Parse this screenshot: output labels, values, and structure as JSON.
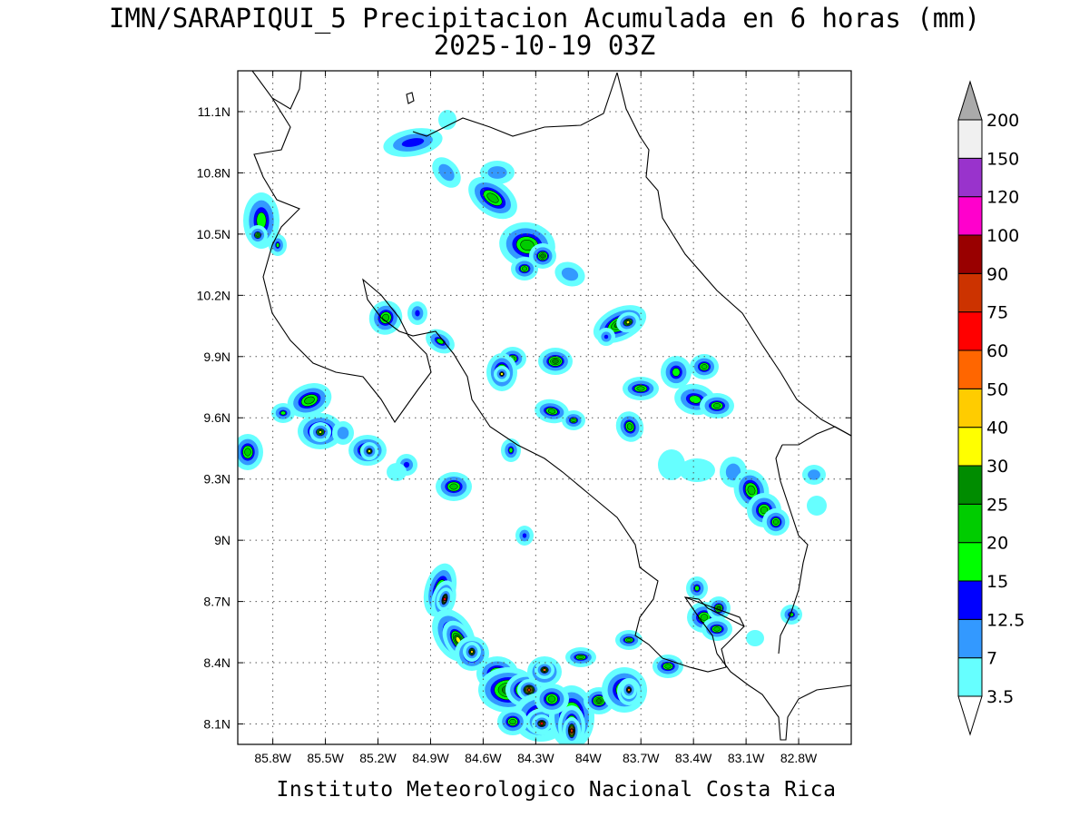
{
  "title": {
    "line1": "IMN/SARAPIQUI_5 Precipitacion Acumulada en 6 horas (mm)",
    "line2": "2025-10-19 03Z"
  },
  "footer": "Instituto Meteorologico Nacional Costa Rica",
  "map": {
    "lon_range": [
      -86.0,
      -82.5
    ],
    "lat_range": [
      8.0,
      11.3
    ],
    "lon_ticks": [
      {
        "value": -85.8,
        "label": "85.8W"
      },
      {
        "value": -85.5,
        "label": "85.5W"
      },
      {
        "value": -85.2,
        "label": "85.2W"
      },
      {
        "value": -84.9,
        "label": "84.9W"
      },
      {
        "value": -84.6,
        "label": "84.6W"
      },
      {
        "value": -84.3,
        "label": "84.3W"
      },
      {
        "value": -84.0,
        "label": "84W"
      },
      {
        "value": -83.7,
        "label": "83.7W"
      },
      {
        "value": -83.4,
        "label": "83.4W"
      },
      {
        "value": -83.1,
        "label": "83.1W"
      },
      {
        "value": -82.8,
        "label": "82.8W"
      }
    ],
    "lat_ticks": [
      {
        "value": 11.1,
        "label": "11.1N"
      },
      {
        "value": 10.8,
        "label": "10.8N"
      },
      {
        "value": 10.5,
        "label": "10.5N"
      },
      {
        "value": 10.2,
        "label": "10.2N"
      },
      {
        "value": 9.9,
        "label": "9.9N"
      },
      {
        "value": 9.6,
        "label": "9.6N"
      },
      {
        "value": 9.3,
        "label": "9.3N"
      },
      {
        "value": 9.0,
        "label": "9N"
      },
      {
        "value": 8.7,
        "label": "8.7N"
      },
      {
        "value": 8.4,
        "label": "8.4N"
      },
      {
        "value": 8.1,
        "label": "8.1N"
      }
    ],
    "grid": "dotted"
  },
  "colorbar": {
    "levels": [
      {
        "label": "3.5",
        "color": "#66ffff"
      },
      {
        "label": "7",
        "color": "#3399ff"
      },
      {
        "label": "12.5",
        "color": "#0000ff"
      },
      {
        "label": "15",
        "color": "#00ff00"
      },
      {
        "label": "20",
        "color": "#00cc00"
      },
      {
        "label": "25",
        "color": "#008c00"
      },
      {
        "label": "30",
        "color": "#ffff00"
      },
      {
        "label": "40",
        "color": "#ffcc00"
      },
      {
        "label": "50",
        "color": "#ff6600"
      },
      {
        "label": "60",
        "color": "#ff0000"
      },
      {
        "label": "75",
        "color": "#cc3300"
      },
      {
        "label": "90",
        "color": "#990000"
      },
      {
        "label": "100",
        "color": "#ff00cc"
      },
      {
        "label": "120",
        "color": "#9933cc"
      },
      {
        "label": "150",
        "color": "#f0f0f0"
      },
      {
        "label": "200",
        "color": "#aaaaaa"
      }
    ]
  },
  "precip_colors": {
    "c1": "#66ffff",
    "c2": "#3399ff",
    "c3": "#0000ff",
    "c4": "#00ff00",
    "c5": "#00cc00",
    "c6": "#008c00",
    "c7": "#ffff00",
    "c8": "#ffcc00",
    "c9": "#ff6600",
    "c10": "#ff0000",
    "c11": "#cc3300",
    "c12": "#990000"
  }
}
